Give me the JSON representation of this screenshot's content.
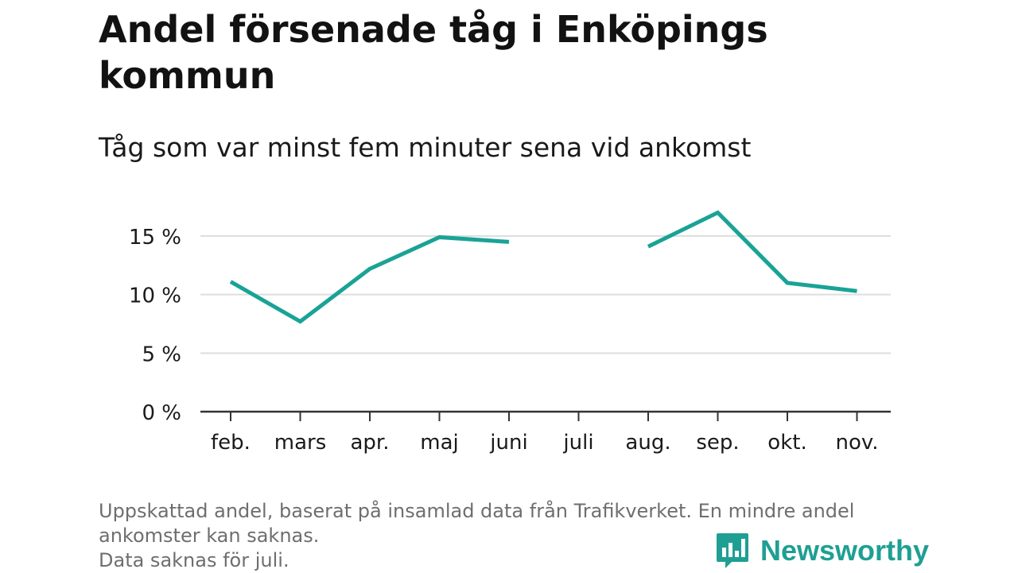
{
  "header": {
    "title_line1": "Andel försenade tåg i Enköpings",
    "title_line2": "kommun",
    "subtitle": "Tåg som var minst fem minuter sena vid ankomst"
  },
  "footer": {
    "note_line1": "Uppskattad andel, baserat på insamlad data från Trafikverket. En mindre andel",
    "note_line2": "ankomster kan saknas.",
    "note_line3": "Data saknas för juli.",
    "brand": "Newsworthy"
  },
  "colors": {
    "line": "#19a396",
    "grid": "#dedede",
    "axis": "#333333",
    "brand": "#1f9f93"
  },
  "chart_data": {
    "type": "line",
    "categories": [
      "feb.",
      "mars",
      "apr.",
      "maj",
      "juni",
      "juli",
      "aug.",
      "sep.",
      "okt.",
      "nov."
    ],
    "series": [
      {
        "values": [
          11.1,
          7.7,
          12.2,
          14.9,
          14.5,
          null,
          14.1,
          17.0,
          11.0,
          10.3
        ]
      }
    ],
    "ylim": [
      0,
      17
    ],
    "yticks": [
      0,
      5,
      10,
      15
    ],
    "ytick_labels": [
      "0 %",
      "5 %",
      "10 %",
      "15 %"
    ],
    "xlabel": "",
    "ylabel": "",
    "grid": true
  }
}
